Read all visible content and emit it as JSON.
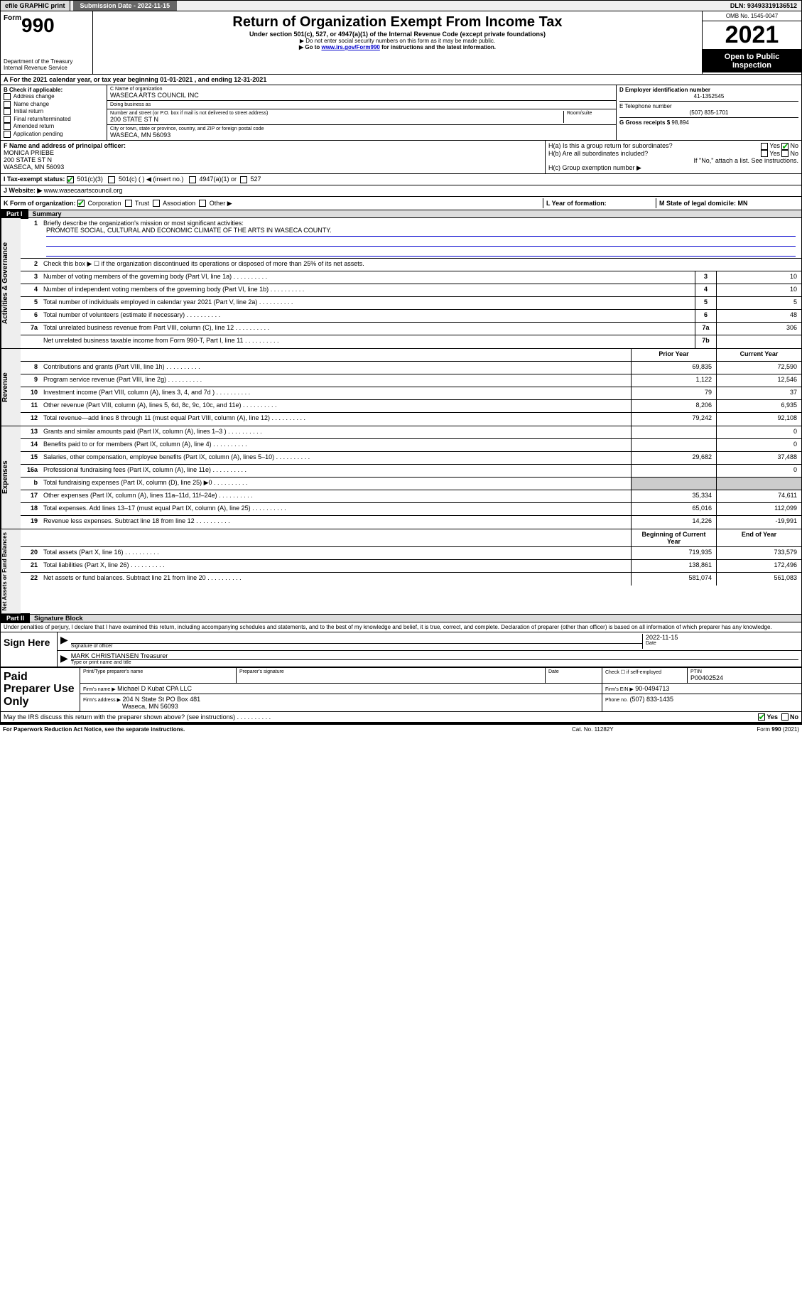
{
  "topbar": {
    "efile": "efile GRAPHIC print",
    "submission_label": "Submission Date - 2022-11-15",
    "dln": "DLN: 93493319136512"
  },
  "header": {
    "form_word": "Form",
    "form_num": "990",
    "dept": "Department of the Treasury Internal Revenue Service",
    "title": "Return of Organization Exempt From Income Tax",
    "sub": "Under section 501(c), 527, or 4947(a)(1) of the Internal Revenue Code (except private foundations)",
    "note1": "▶ Do not enter social security numbers on this form as it may be made public.",
    "note2_pre": "▶ Go to ",
    "note2_link": "www.irs.gov/Form990",
    "note2_post": " for instructions and the latest information.",
    "omb": "OMB No. 1545-0047",
    "year": "2021",
    "open": "Open to Public Inspection"
  },
  "line_a": "A For the 2021 calendar year, or tax year beginning 01-01-2021    , and ending 12-31-2021",
  "box_b": {
    "title": "B Check if applicable:",
    "items": [
      "Address change",
      "Name change",
      "Initial return",
      "Final return/terminated",
      "Amended return",
      "Application pending"
    ]
  },
  "box_c": {
    "name_lbl": "C Name of organization",
    "name": "WASECA ARTS COUNCIL INC",
    "dba_lbl": "Doing business as",
    "dba": "",
    "addr_lbl": "Number and street (or P.O. box if mail is not delivered to street address)",
    "room_lbl": "Room/suite",
    "addr": "200 STATE ST N",
    "city_lbl": "City or town, state or province, country, and ZIP or foreign postal code",
    "city": "WASECA, MN  56093"
  },
  "box_d": {
    "ein_lbl": "D Employer identification number",
    "ein": "41-1352545",
    "tel_lbl": "E Telephone number",
    "tel": "(507) 835-1701",
    "gross_lbl": "G Gross receipts $",
    "gross": "98,894"
  },
  "box_f": {
    "lbl": "F Name and address of principal officer:",
    "name": "MONICA PRIEBE",
    "addr1": "200 STATE ST N",
    "addr2": "WASECA, MN  56093"
  },
  "box_h": {
    "a": "H(a)  Is this a group return for subordinates?",
    "a_yes": "Yes",
    "a_no": "No",
    "b": "H(b)  Are all subordinates included?",
    "b_yes": "Yes",
    "b_no": "No",
    "b_note": "If \"No,\" attach a list. See instructions.",
    "c": "H(c)  Group exemption number ▶"
  },
  "row_i": {
    "lbl": "I   Tax-exempt status:",
    "c3": "501(c)(3)",
    "c": "501(c) (   ) ◀ (insert no.)",
    "a4947": "4947(a)(1) or",
    "s527": "527"
  },
  "row_j": {
    "lbl": "J   Website: ▶",
    "val": "www.wasecaartscouncil.org"
  },
  "row_k": {
    "lbl": "K Form of organization:",
    "corp": "Corporation",
    "trust": "Trust",
    "assoc": "Association",
    "other": "Other ▶",
    "l_lbl": "L Year of formation:",
    "m_lbl": "M State of legal domicile: MN"
  },
  "part1": {
    "bar": "Part I",
    "title": "Summary"
  },
  "summary": {
    "governance_label": "Activities & Governance",
    "revenue_label": "Revenue",
    "expenses_label": "Expenses",
    "netassets_label": "Net Assets or Fund Balances",
    "line1_lbl": "Briefly describe the organization's mission or most significant activities:",
    "line1_val": "PROMOTE SOCIAL, CULTURAL AND ECONOMIC CLIMATE OF THE ARTS IN WASECA COUNTY.",
    "line2": "Check this box ▶ ☐  if the organization discontinued its operations or disposed of more than 25% of its net assets.",
    "rows_small": [
      {
        "n": "3",
        "d": "Number of voting members of the governing body (Part VI, line 1a)",
        "box": "3",
        "v": "10"
      },
      {
        "n": "4",
        "d": "Number of independent voting members of the governing body (Part VI, line 1b)",
        "box": "4",
        "v": "10"
      },
      {
        "n": "5",
        "d": "Total number of individuals employed in calendar year 2021 (Part V, line 2a)",
        "box": "5",
        "v": "5"
      },
      {
        "n": "6",
        "d": "Total number of volunteers (estimate if necessary)",
        "box": "6",
        "v": "48"
      },
      {
        "n": "7a",
        "d": "Total unrelated business revenue from Part VIII, column (C), line 12",
        "box": "7a",
        "v": "306"
      },
      {
        "n": "",
        "d": "Net unrelated business taxable income from Form 990-T, Part I, line 11",
        "box": "7b",
        "v": ""
      }
    ],
    "hdr_prior": "Prior Year",
    "hdr_current": "Current Year",
    "rows_rev": [
      {
        "n": "8",
        "d": "Contributions and grants (Part VIII, line 1h)",
        "p": "69,835",
        "c": "72,590"
      },
      {
        "n": "9",
        "d": "Program service revenue (Part VIII, line 2g)",
        "p": "1,122",
        "c": "12,546"
      },
      {
        "n": "10",
        "d": "Investment income (Part VIII, column (A), lines 3, 4, and 7d )",
        "p": "79",
        "c": "37"
      },
      {
        "n": "11",
        "d": "Other revenue (Part VIII, column (A), lines 5, 6d, 8c, 9c, 10c, and 11e)",
        "p": "8,206",
        "c": "6,935"
      },
      {
        "n": "12",
        "d": "Total revenue—add lines 8 through 11 (must equal Part VIII, column (A), line 12)",
        "p": "79,242",
        "c": "92,108"
      }
    ],
    "rows_exp": [
      {
        "n": "13",
        "d": "Grants and similar amounts paid (Part IX, column (A), lines 1–3 )",
        "p": "",
        "c": "0"
      },
      {
        "n": "14",
        "d": "Benefits paid to or for members (Part IX, column (A), line 4)",
        "p": "",
        "c": "0"
      },
      {
        "n": "15",
        "d": "Salaries, other compensation, employee benefits (Part IX, column (A), lines 5–10)",
        "p": "29,682",
        "c": "37,488"
      },
      {
        "n": "16a",
        "d": "Professional fundraising fees (Part IX, column (A), line 11e)",
        "p": "",
        "c": "0"
      },
      {
        "n": "b",
        "d": "Total fundraising expenses (Part IX, column (D), line 25) ▶0",
        "p": "GREY",
        "c": "GREY"
      },
      {
        "n": "17",
        "d": "Other expenses (Part IX, column (A), lines 11a–11d, 11f–24e)",
        "p": "35,334",
        "c": "74,611"
      },
      {
        "n": "18",
        "d": "Total expenses. Add lines 13–17 (must equal Part IX, column (A), line 25)",
        "p": "65,016",
        "c": "112,099"
      },
      {
        "n": "19",
        "d": "Revenue less expenses. Subtract line 18 from line 12",
        "p": "14,226",
        "c": "-19,991"
      }
    ],
    "hdr_begin": "Beginning of Current Year",
    "hdr_end": "End of Year",
    "rows_net": [
      {
        "n": "20",
        "d": "Total assets (Part X, line 16)",
        "p": "719,935",
        "c": "733,579"
      },
      {
        "n": "21",
        "d": "Total liabilities (Part X, line 26)",
        "p": "138,861",
        "c": "172,496"
      },
      {
        "n": "22",
        "d": "Net assets or fund balances. Subtract line 21 from line 20",
        "p": "581,074",
        "c": "561,083"
      }
    ]
  },
  "part2": {
    "bar": "Part II",
    "title": "Signature Block"
  },
  "sig": {
    "intro": "Under penalties of perjury, I declare that I have examined this return, including accompanying schedules and statements, and to the best of my knowledge and belief, it is true, correct, and complete. Declaration of preparer (other than officer) is based on all information of which preparer has any knowledge.",
    "sign_here": "Sign Here",
    "officer_lbl": "Signature of officer",
    "date_lbl": "Date",
    "date_val": "2022-11-15",
    "name_val": "MARK CHRISTIANSEN Treasurer",
    "name_lbl": "Type or print name and title"
  },
  "paid": {
    "title": "Paid Preparer Use Only",
    "h1": "Print/Type preparer's name",
    "h2": "Preparer's signature",
    "h3": "Date",
    "h4": "Check ☐ if self-employed",
    "h5_lbl": "PTIN",
    "h5": "P00402524",
    "firm_lbl": "Firm's name    ▶",
    "firm": "Michael D Kubat CPA LLC",
    "ein_lbl": "Firm's EIN ▶",
    "ein": "90-0494713",
    "addr_lbl": "Firm's address ▶",
    "addr1": "204 N State St PO Box 481",
    "addr2": "Waseca, MN  56093",
    "phone_lbl": "Phone no.",
    "phone": "(507) 833-1435"
  },
  "discuss": {
    "q": "May the IRS discuss this return with the preparer shown above? (see instructions)",
    "yes": "Yes",
    "no": "No"
  },
  "footer": {
    "left": "For Paperwork Reduction Act Notice, see the separate instructions.",
    "mid": "Cat. No. 11282Y",
    "right": "Form 990 (2021)"
  }
}
